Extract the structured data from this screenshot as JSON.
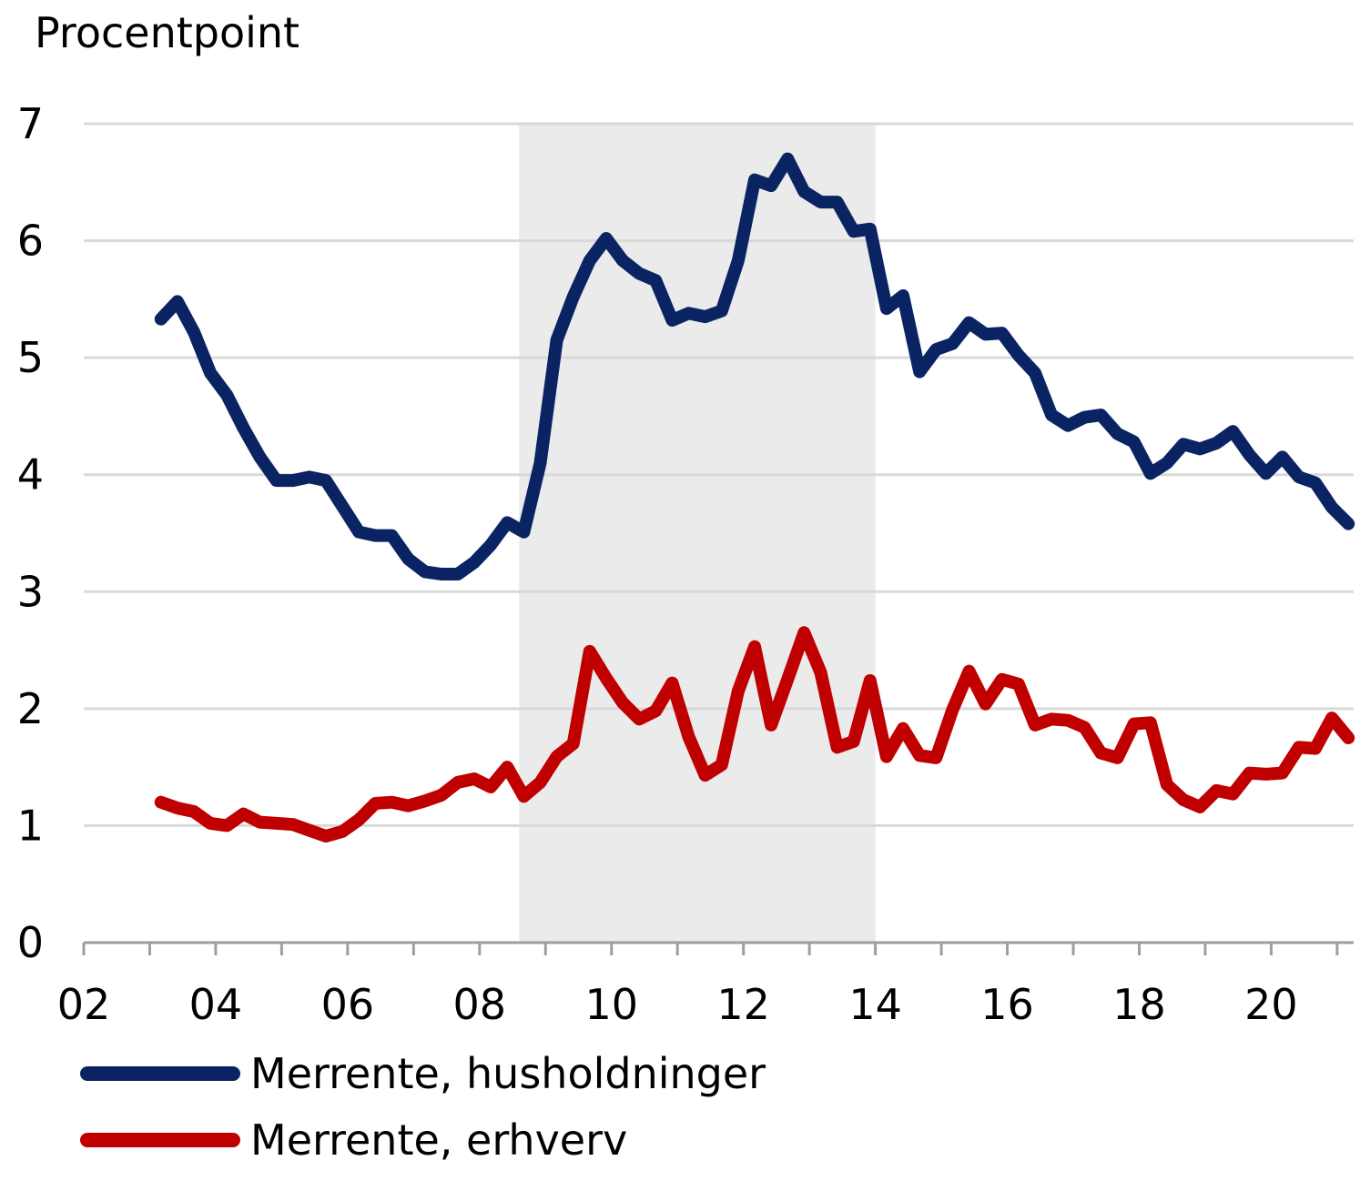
{
  "chart_data": {
    "type": "line",
    "ylabel": "Procentpoint",
    "ylim": [
      0,
      7
    ],
    "yticks": [
      "0",
      "1",
      "2",
      "3",
      "4",
      "5",
      "6",
      "7"
    ],
    "xlim": [
      2002,
      2021.25
    ],
    "xticks": [
      "02",
      "04",
      "06",
      "08",
      "10",
      "12",
      "14",
      "16",
      "18",
      "20"
    ],
    "grid": true,
    "shaded_period": {
      "from": 2008.6,
      "to": 2014.0,
      "color": "#ebebeb"
    },
    "legend_position": "bottom-left",
    "series": [
      {
        "name": "Merrente, husholdninger",
        "color": "#0a2463",
        "points": [
          [
            2003.17,
            5.33
          ],
          [
            2003.42,
            5.48
          ],
          [
            2003.67,
            5.22
          ],
          [
            2003.92,
            4.87
          ],
          [
            2004.17,
            4.68
          ],
          [
            2004.42,
            4.4
          ],
          [
            2004.67,
            4.15
          ],
          [
            2004.92,
            3.95
          ],
          [
            2005.17,
            3.95
          ],
          [
            2005.42,
            3.98
          ],
          [
            2005.67,
            3.95
          ],
          [
            2005.92,
            3.73
          ],
          [
            2006.17,
            3.51
          ],
          [
            2006.42,
            3.48
          ],
          [
            2006.67,
            3.48
          ],
          [
            2006.92,
            3.28
          ],
          [
            2007.17,
            3.17
          ],
          [
            2007.42,
            3.15
          ],
          [
            2007.67,
            3.15
          ],
          [
            2007.92,
            3.25
          ],
          [
            2008.17,
            3.4
          ],
          [
            2008.42,
            3.59
          ],
          [
            2008.67,
            3.51
          ],
          [
            2008.92,
            4.1
          ],
          [
            2009.17,
            5.15
          ],
          [
            2009.42,
            5.52
          ],
          [
            2009.67,
            5.83
          ],
          [
            2009.92,
            6.02
          ],
          [
            2010.17,
            5.83
          ],
          [
            2010.42,
            5.72
          ],
          [
            2010.67,
            5.66
          ],
          [
            2010.92,
            5.32
          ],
          [
            2011.17,
            5.38
          ],
          [
            2011.42,
            5.35
          ],
          [
            2011.67,
            5.4
          ],
          [
            2011.92,
            5.83
          ],
          [
            2012.17,
            6.52
          ],
          [
            2012.42,
            6.47
          ],
          [
            2012.67,
            6.7
          ],
          [
            2012.92,
            6.42
          ],
          [
            2013.17,
            6.33
          ],
          [
            2013.42,
            6.33
          ],
          [
            2013.67,
            6.08
          ],
          [
            2013.92,
            6.1
          ],
          [
            2014.17,
            5.42
          ],
          [
            2014.42,
            5.53
          ],
          [
            2014.67,
            4.88
          ],
          [
            2014.92,
            5.07
          ],
          [
            2015.17,
            5.12
          ],
          [
            2015.42,
            5.3
          ],
          [
            2015.67,
            5.2
          ],
          [
            2015.92,
            5.21
          ],
          [
            2016.17,
            5.02
          ],
          [
            2016.42,
            4.87
          ],
          [
            2016.67,
            4.51
          ],
          [
            2016.92,
            4.42
          ],
          [
            2017.17,
            4.49
          ],
          [
            2017.42,
            4.51
          ],
          [
            2017.67,
            4.35
          ],
          [
            2017.92,
            4.28
          ],
          [
            2018.17,
            4.01
          ],
          [
            2018.42,
            4.1
          ],
          [
            2018.67,
            4.26
          ],
          [
            2018.92,
            4.22
          ],
          [
            2019.17,
            4.27
          ],
          [
            2019.42,
            4.37
          ],
          [
            2019.67,
            4.17
          ],
          [
            2019.92,
            4.01
          ],
          [
            2020.17,
            4.15
          ],
          [
            2020.42,
            3.98
          ],
          [
            2020.67,
            3.93
          ],
          [
            2020.92,
            3.72
          ],
          [
            2021.17,
            3.58
          ]
        ]
      },
      {
        "name": "Merrente, erhverv",
        "color": "#c00000",
        "points": [
          [
            2003.17,
            1.2
          ],
          [
            2003.42,
            1.15
          ],
          [
            2003.67,
            1.12
          ],
          [
            2003.92,
            1.02
          ],
          [
            2004.17,
            1.0
          ],
          [
            2004.42,
            1.1
          ],
          [
            2004.67,
            1.03
          ],
          [
            2004.92,
            1.02
          ],
          [
            2005.17,
            1.01
          ],
          [
            2005.42,
            0.96
          ],
          [
            2005.67,
            0.91
          ],
          [
            2005.92,
            0.95
          ],
          [
            2006.17,
            1.05
          ],
          [
            2006.42,
            1.19
          ],
          [
            2006.67,
            1.2
          ],
          [
            2006.92,
            1.17
          ],
          [
            2007.17,
            1.21
          ],
          [
            2007.42,
            1.26
          ],
          [
            2007.67,
            1.37
          ],
          [
            2007.92,
            1.4
          ],
          [
            2008.17,
            1.33
          ],
          [
            2008.42,
            1.5
          ],
          [
            2008.67,
            1.25
          ],
          [
            2008.92,
            1.37
          ],
          [
            2009.17,
            1.59
          ],
          [
            2009.42,
            1.7
          ],
          [
            2009.67,
            2.49
          ],
          [
            2009.92,
            2.26
          ],
          [
            2010.17,
            2.05
          ],
          [
            2010.42,
            1.91
          ],
          [
            2010.67,
            1.98
          ],
          [
            2010.92,
            2.22
          ],
          [
            2011.17,
            1.76
          ],
          [
            2011.42,
            1.43
          ],
          [
            2011.67,
            1.52
          ],
          [
            2011.92,
            2.15
          ],
          [
            2012.17,
            2.53
          ],
          [
            2012.42,
            1.86
          ],
          [
            2012.67,
            2.25
          ],
          [
            2012.92,
            2.65
          ],
          [
            2013.17,
            2.31
          ],
          [
            2013.42,
            1.67
          ],
          [
            2013.67,
            1.72
          ],
          [
            2013.92,
            2.24
          ],
          [
            2014.17,
            1.59
          ],
          [
            2014.42,
            1.83
          ],
          [
            2014.67,
            1.6
          ],
          [
            2014.92,
            1.58
          ],
          [
            2015.17,
            1.99
          ],
          [
            2015.42,
            2.32
          ],
          [
            2015.67,
            2.04
          ],
          [
            2015.92,
            2.25
          ],
          [
            2016.17,
            2.21
          ],
          [
            2016.42,
            1.86
          ],
          [
            2016.67,
            1.91
          ],
          [
            2016.92,
            1.9
          ],
          [
            2017.17,
            1.84
          ],
          [
            2017.42,
            1.62
          ],
          [
            2017.67,
            1.58
          ],
          [
            2017.92,
            1.87
          ],
          [
            2018.17,
            1.88
          ],
          [
            2018.42,
            1.35
          ],
          [
            2018.67,
            1.22
          ],
          [
            2018.92,
            1.16
          ],
          [
            2019.17,
            1.3
          ],
          [
            2019.42,
            1.27
          ],
          [
            2019.67,
            1.45
          ],
          [
            2019.92,
            1.44
          ],
          [
            2020.17,
            1.45
          ],
          [
            2020.42,
            1.67
          ],
          [
            2020.67,
            1.66
          ],
          [
            2020.92,
            1.92
          ],
          [
            2021.17,
            1.75
          ]
        ]
      }
    ]
  }
}
